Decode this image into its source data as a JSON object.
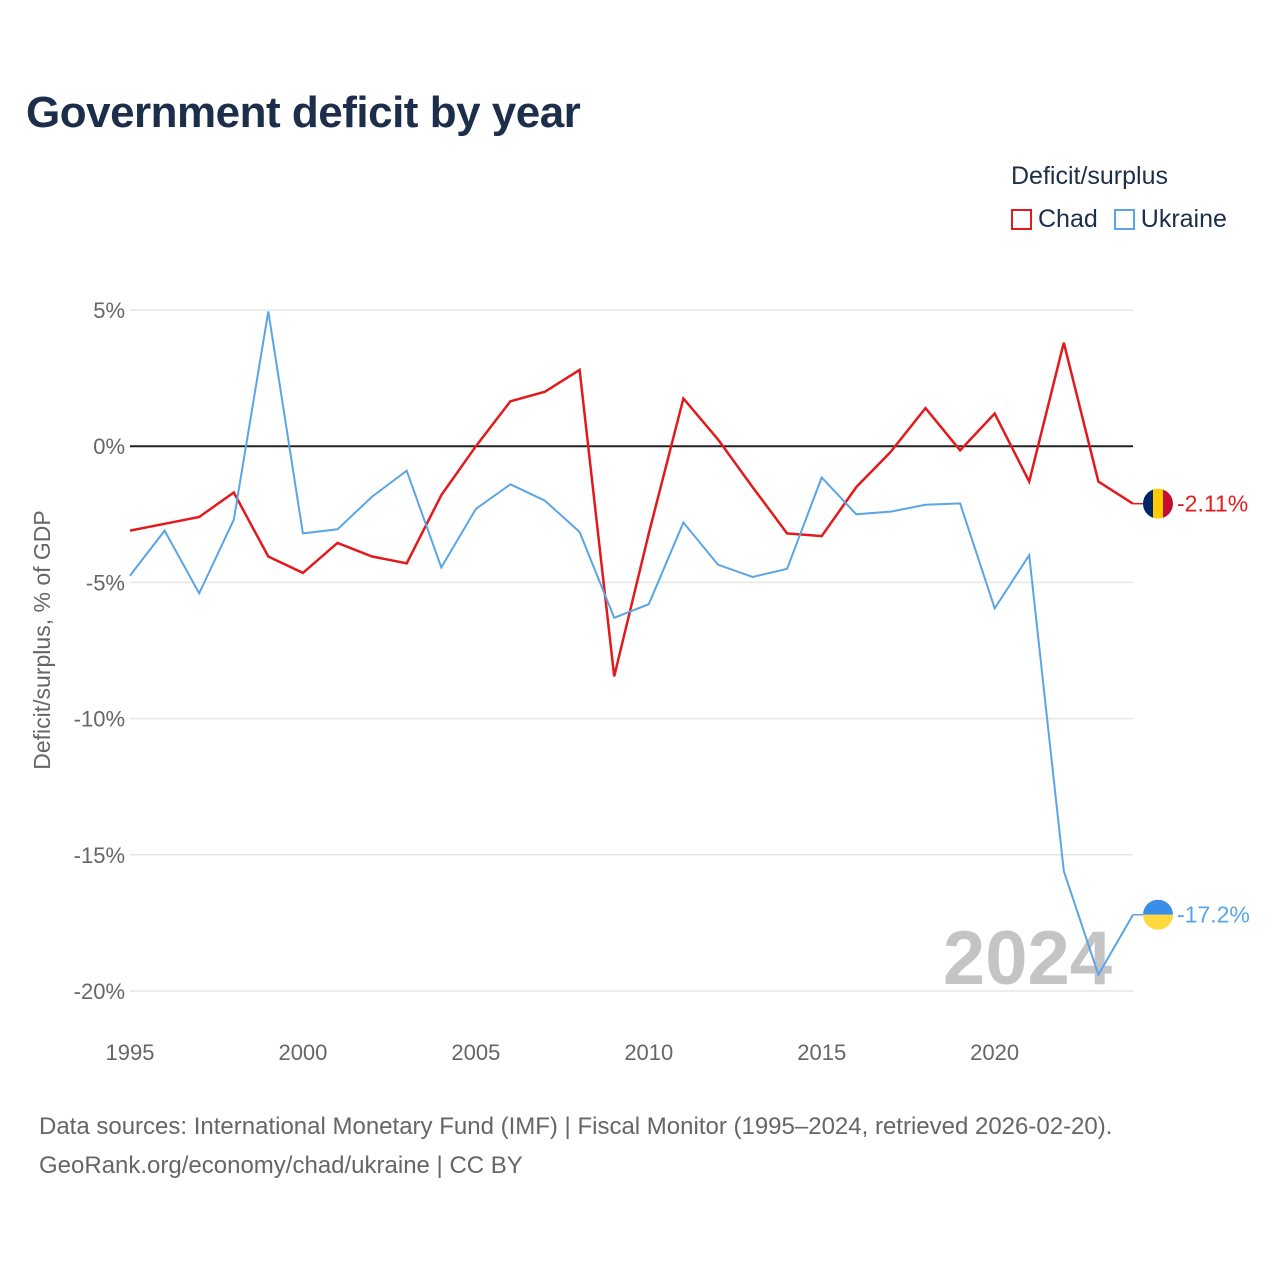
{
  "title": "Government deficit by year",
  "legend": {
    "title": "Deficit/surplus",
    "items": [
      {
        "label": "Chad",
        "color": "#e31a1c"
      },
      {
        "label": "Ukraine",
        "color": "#5aa5e6"
      }
    ]
  },
  "footer": {
    "line1": "Data sources: International Monetary Fund (IMF) | Fiscal Monitor (1995–2024, retrieved 2026-02-20).",
    "line2": "GeoRank.org/economy/chad/ukraine | CC BY"
  },
  "chart_data": {
    "type": "line",
    "title": "Government deficit by year",
    "ylabel": "Deficit/surplus, % of GDP",
    "xlabel": "",
    "x": [
      1995,
      1996,
      1997,
      1998,
      1999,
      2000,
      2001,
      2002,
      2003,
      2004,
      2005,
      2006,
      2007,
      2008,
      2009,
      2010,
      2011,
      2012,
      2013,
      2014,
      2015,
      2016,
      2017,
      2018,
      2019,
      2020,
      2021,
      2022,
      2023,
      2024
    ],
    "xlim": [
      1995,
      2024
    ],
    "ylim": [
      -20,
      5
    ],
    "x_ticks": [
      1995,
      2000,
      2005,
      2010,
      2015,
      2020
    ],
    "x_tick_labels": [
      "1995",
      "2000",
      "2005",
      "2010",
      "2015",
      "2020"
    ],
    "y_ticks": [
      5,
      0,
      -5,
      -10,
      -15,
      -20
    ],
    "y_tick_labels": [
      "5%",
      "0%",
      "-5%",
      "-10%",
      "-15%",
      "-20%"
    ],
    "zero_line": true,
    "year_label": "2024",
    "series": [
      {
        "name": "Chad",
        "color": "#e31a1c",
        "end_label": "-2.11%",
        "values": [
          -3.1,
          -2.85,
          -2.6,
          -1.7,
          -4.05,
          -4.65,
          -3.55,
          -4.05,
          -4.3,
          -1.8,
          0.0,
          1.65,
          2.0,
          2.8,
          -8.45,
          -3.2,
          1.75,
          0.25,
          -1.5,
          -3.2,
          -3.3,
          -1.5,
          -0.2,
          1.4,
          -0.15,
          1.2,
          -1.3,
          3.8,
          -1.3,
          -2.11
        ]
      },
      {
        "name": "Ukraine",
        "color": "#5aa5e6",
        "end_label": "-17.2%",
        "values": [
          -4.75,
          -3.1,
          -5.4,
          -2.7,
          4.95,
          -3.2,
          -3.05,
          -1.85,
          -0.9,
          -4.45,
          -2.3,
          -1.4,
          -2.0,
          -3.15,
          -6.3,
          -5.8,
          -2.8,
          -4.35,
          -4.8,
          -4.5,
          -1.15,
          -2.5,
          -2.4,
          -2.15,
          -2.1,
          -5.95,
          -4.0,
          -15.6,
          -19.4,
          -17.2
        ]
      }
    ]
  }
}
